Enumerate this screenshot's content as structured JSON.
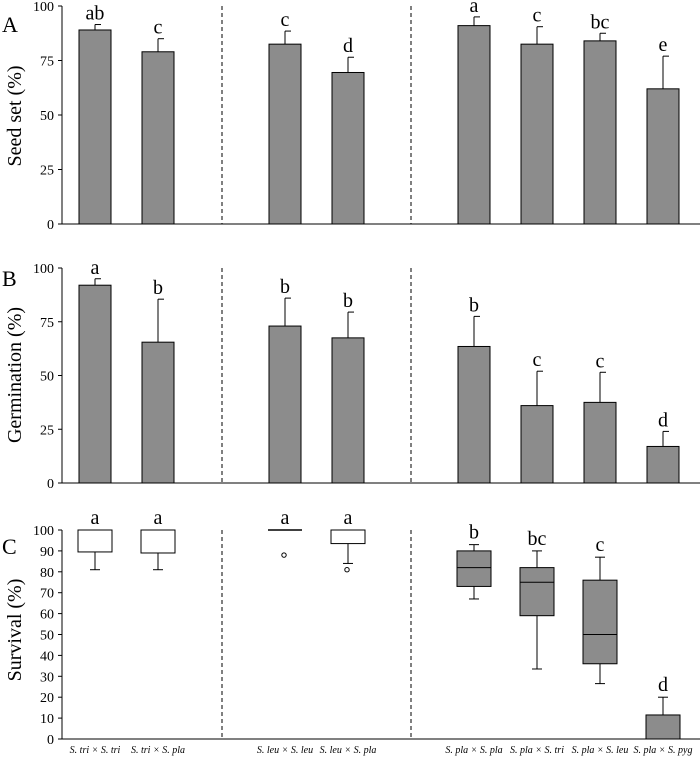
{
  "colors": {
    "bar": "#8c8c8c",
    "stroke": "#000000",
    "background": "#ffffff"
  },
  "x_labels": [
    "S. tri × S. tri",
    "S. tri × S. pla",
    "S. leu × S. leu",
    "S. leu × S. pla",
    "S. pla × S. pla",
    "S. pla × S. tri",
    "S. pla × S. leu",
    "S. pla × S. pyg"
  ],
  "chart_data": [
    {
      "type": "bar",
      "panel": "A",
      "ylabel": "Seed set (%)",
      "ylim": [
        0,
        100
      ],
      "yticks": [
        0,
        25,
        50,
        75,
        100
      ],
      "categories": [
        "S. tri × S. tri",
        "S. tri × S. pla",
        "S. leu × S. leu",
        "S. leu × S. pla",
        "S. pla × S. pla",
        "S. pla × S. tri",
        "S. pla × S. leu",
        "S. pla × S. pyg"
      ],
      "values": [
        89,
        79,
        82.5,
        69.5,
        91,
        82.5,
        84,
        62
      ],
      "errors": [
        2.5,
        6,
        6,
        7,
        4,
        8,
        3.5,
        15
      ],
      "letters": [
        "ab",
        "c",
        "c",
        "d",
        "a",
        "c",
        "bc",
        "e"
      ]
    },
    {
      "type": "bar",
      "panel": "B",
      "ylabel": "Germination (%)",
      "ylim": [
        0,
        100
      ],
      "yticks": [
        0,
        25,
        50,
        75,
        100
      ],
      "categories": [
        "S. tri × S. tri",
        "S. tri × S. pla",
        "S. leu × S. leu",
        "S. leu × S. pla",
        "S. pla × S. pla",
        "S. pla × S. tri",
        "S. pla × S. leu",
        "S. pla × S. pyg"
      ],
      "values": [
        92,
        65.5,
        73,
        67.5,
        63.5,
        36,
        37.5,
        17
      ],
      "errors": [
        3,
        20,
        13,
        12,
        14,
        16,
        14,
        7
      ],
      "letters": [
        "a",
        "b",
        "b",
        "b",
        "b",
        "c",
        "c",
        "d"
      ]
    },
    {
      "type": "box",
      "panel": "C",
      "ylabel": "Survival (%)",
      "ylim": [
        0,
        100
      ],
      "yticks": [
        0,
        10,
        20,
        30,
        40,
        50,
        60,
        70,
        80,
        90,
        100
      ],
      "categories": [
        "S. tri × S. tri",
        "S. tri × S. pla",
        "S. leu × S. leu",
        "S. leu × S. pla",
        "S. pla × S. pla",
        "S. pla × S. tri",
        "S. pla × S. leu",
        "S. pla × S. pyg"
      ],
      "boxes": [
        {
          "min": 81,
          "q1": 89.5,
          "median": 100,
          "q3": 100,
          "max": 100,
          "outliers": [],
          "filled": false
        },
        {
          "min": 81,
          "q1": 89,
          "median": 100,
          "q3": 100,
          "max": 100,
          "outliers": [],
          "filled": false
        },
        {
          "min": 100,
          "q1": 100,
          "median": 100,
          "q3": 100,
          "max": 100,
          "outliers": [
            88
          ],
          "filled": false
        },
        {
          "min": 84,
          "q1": 93.5,
          "median": 100,
          "q3": 100,
          "max": 100,
          "outliers": [
            81
          ],
          "filled": false
        },
        {
          "min": 67,
          "q1": 73,
          "median": 82,
          "q3": 90,
          "max": 93,
          "outliers": [],
          "filled": true
        },
        {
          "min": 33.5,
          "q1": 59,
          "median": 75,
          "q3": 82,
          "max": 90,
          "outliers": [],
          "filled": true
        },
        {
          "min": 26.5,
          "q1": 36,
          "median": 50,
          "q3": 76,
          "max": 87,
          "outliers": [],
          "filled": true
        },
        {
          "min": 0,
          "q1": 0,
          "median": 0,
          "q3": 11.5,
          "max": 20,
          "outliers": [],
          "filled": true
        }
      ],
      "letters": [
        "a",
        "a",
        "a",
        "a",
        "b",
        "bc",
        "c",
        "d"
      ]
    }
  ]
}
